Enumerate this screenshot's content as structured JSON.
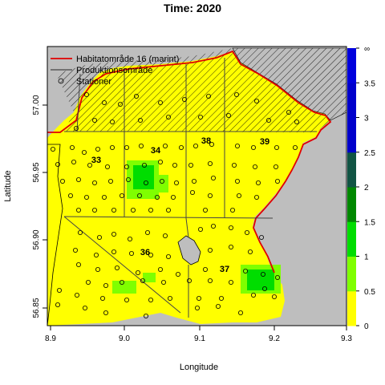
{
  "title": "Time: 2020",
  "axes": {
    "xlabel": "Longitude",
    "ylabel": "Latitude",
    "xticks": [
      "8.9",
      "9.0",
      "9.1",
      "9.2",
      "9.3"
    ],
    "yticks": [
      "56.85",
      "56.90",
      "56.95",
      "57.00"
    ]
  },
  "legend": {
    "items": [
      {
        "label": "Habitatområde 16 (marint)",
        "symbol": "line",
        "color": "#e00000"
      },
      {
        "label": "Produktionsområde",
        "symbol": "line",
        "color": "#444444"
      },
      {
        "label": "Stationer",
        "symbol": "circle",
        "color": "#000000"
      }
    ]
  },
  "colorbar": {
    "labels": [
      "0",
      "0.5",
      "1",
      "1.5",
      "2",
      "2.5",
      "3",
      "3.5",
      "∞"
    ],
    "colors": [
      "#ffff00",
      "#7fff00",
      "#00dd00",
      "#008800",
      "#115544",
      "#0000cc",
      "#0000cc",
      "#0000dd"
    ]
  },
  "areas": [
    {
      "label": "33"
    },
    {
      "label": "34"
    },
    {
      "label": "38"
    },
    {
      "label": "39"
    },
    {
      "label": "36"
    },
    {
      "label": "37"
    }
  ],
  "colors": {
    "land": "#bebebe",
    "sea_low": "#ffff00",
    "habitat": "#e00000",
    "production": "#444444"
  }
}
